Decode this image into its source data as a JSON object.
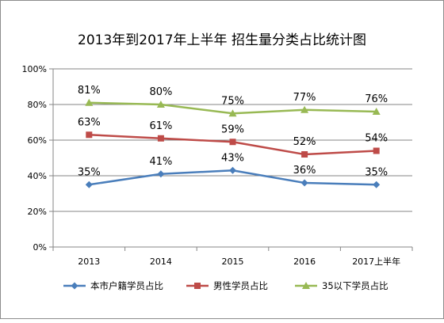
{
  "chart_data": {
    "type": "line",
    "title": "2013年到2017年上半年 招生量分类占比统计图",
    "categories": [
      "2013",
      "2014",
      "2015",
      "2016",
      "2017上半年"
    ],
    "y_ticks": [
      "0%",
      "20%",
      "40%",
      "60%",
      "80%",
      "100%"
    ],
    "ylim": [
      0,
      100
    ],
    "grid": true,
    "legend_position": "bottom",
    "series": [
      {
        "name": "本市户籍学员占比",
        "values": [
          35,
          41,
          43,
          36,
          35
        ],
        "labels": [
          "35%",
          "41%",
          "43%",
          "36%",
          "35%"
        ],
        "color": "#4a7ebb",
        "marker": "diamond"
      },
      {
        "name": "男性学员占比",
        "values": [
          63,
          61,
          59,
          52,
          54
        ],
        "labels": [
          "63%",
          "61%",
          "59%",
          "52%",
          "54%"
        ],
        "color": "#be4b48",
        "marker": "square"
      },
      {
        "name": "35以下学员占比",
        "values": [
          81,
          80,
          75,
          77,
          76
        ],
        "labels": [
          "81%",
          "80%",
          "75%",
          "77%",
          "76%"
        ],
        "color": "#98b954",
        "marker": "triangle"
      }
    ]
  }
}
